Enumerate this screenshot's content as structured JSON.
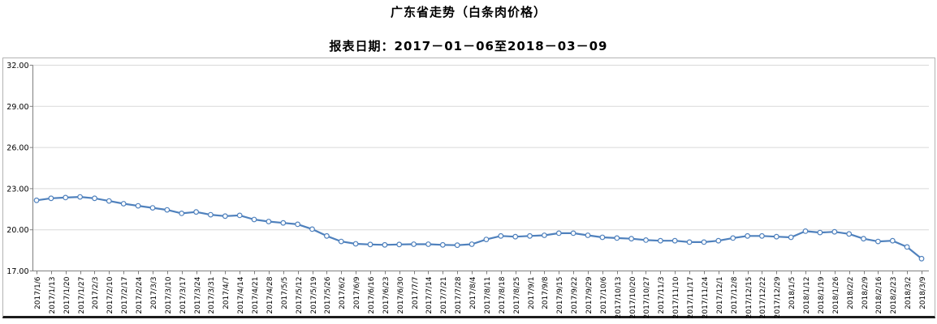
{
  "title": "广东省走势（白条肉价格）",
  "subtitle": "报表日期：2017－01－06至2018－03－09",
  "chart_data": {
    "type": "line",
    "title": "广东省走势（白条肉价格）",
    "subtitle": "报表日期：2017－01－06至2018－03－09",
    "xlabel": "",
    "ylabel": "",
    "grid": true,
    "legend": false,
    "ylim": [
      17,
      32
    ],
    "y_ticks": [
      17,
      20,
      23,
      26,
      29,
      32
    ],
    "y_tick_labels": [
      "17.00",
      "20.00",
      "23.00",
      "26.00",
      "29.00",
      "32.00"
    ],
    "line_color": "#4F81BD",
    "marker_style": "open-circle",
    "grid_color": "#d9d9d9",
    "axis_color": "#7f7f7f",
    "text_color": "#000000",
    "x": [
      "2017/1/6",
      "2017/1/13",
      "2017/1/20",
      "2017/1/27",
      "2017/2/3",
      "2017/2/10",
      "2017/2/17",
      "2017/2/24",
      "2017/3/3",
      "2017/3/10",
      "2017/3/17",
      "2017/3/24",
      "2017/3/31",
      "2017/4/7",
      "2017/4/14",
      "2017/4/21",
      "2017/4/28",
      "2017/5/5",
      "2017/5/12",
      "2017/5/19",
      "2017/5/26",
      "2017/6/2",
      "2017/6/9",
      "2017/6/16",
      "2017/6/23",
      "2017/6/30",
      "2017/7/7",
      "2017/7/14",
      "2017/7/21",
      "2017/7/28",
      "2017/8/4",
      "2017/8/11",
      "2017/8/18",
      "2017/8/25",
      "2017/9/1",
      "2017/9/8",
      "2017/9/15",
      "2017/9/22",
      "2017/9/29",
      "2017/10/6",
      "2017/10/13",
      "2017/10/20",
      "2017/10/27",
      "2017/11/3",
      "2017/11/10",
      "2017/11/17",
      "2017/11/24",
      "2017/12/1",
      "2017/12/8",
      "2017/12/15",
      "2017/12/22",
      "2017/12/29",
      "2018/1/5",
      "2018/1/12",
      "2018/1/19",
      "2018/1/26",
      "2018/2/2",
      "2018/2/9",
      "2018/2/16",
      "2018/2/23",
      "2018/3/2",
      "2018/3/9"
    ],
    "values": [
      22.15,
      22.3,
      22.35,
      22.4,
      22.3,
      22.1,
      21.9,
      21.75,
      21.6,
      21.45,
      21.2,
      21.3,
      21.1,
      21.0,
      21.05,
      20.75,
      20.6,
      20.5,
      20.4,
      20.05,
      19.55,
      19.15,
      18.98,
      18.93,
      18.9,
      18.93,
      18.95,
      18.95,
      18.9,
      18.88,
      18.95,
      19.3,
      19.55,
      19.5,
      19.55,
      19.6,
      19.75,
      19.75,
      19.6,
      19.45,
      19.4,
      19.35,
      19.25,
      19.2,
      19.2,
      19.1,
      19.1,
      19.2,
      19.4,
      19.55,
      19.55,
      19.5,
      19.45,
      19.9,
      19.8,
      19.85,
      19.7,
      19.35,
      19.15,
      19.2,
      18.75,
      17.9
    ]
  }
}
